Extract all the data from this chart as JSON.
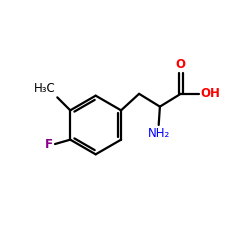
{
  "bg_color": "#ffffff",
  "bond_color": "#000000",
  "o_color": "#ff0000",
  "n_color": "#0000ff",
  "f_color": "#8b008b",
  "label_H3C": "H₃C",
  "label_F": "F",
  "label_O": "O",
  "label_OH": "OH",
  "label_NH2": "NH₂",
  "figsize": [
    2.5,
    2.5
  ],
  "dpi": 100,
  "xlim": [
    0,
    10
  ],
  "ylim": [
    0,
    10
  ]
}
